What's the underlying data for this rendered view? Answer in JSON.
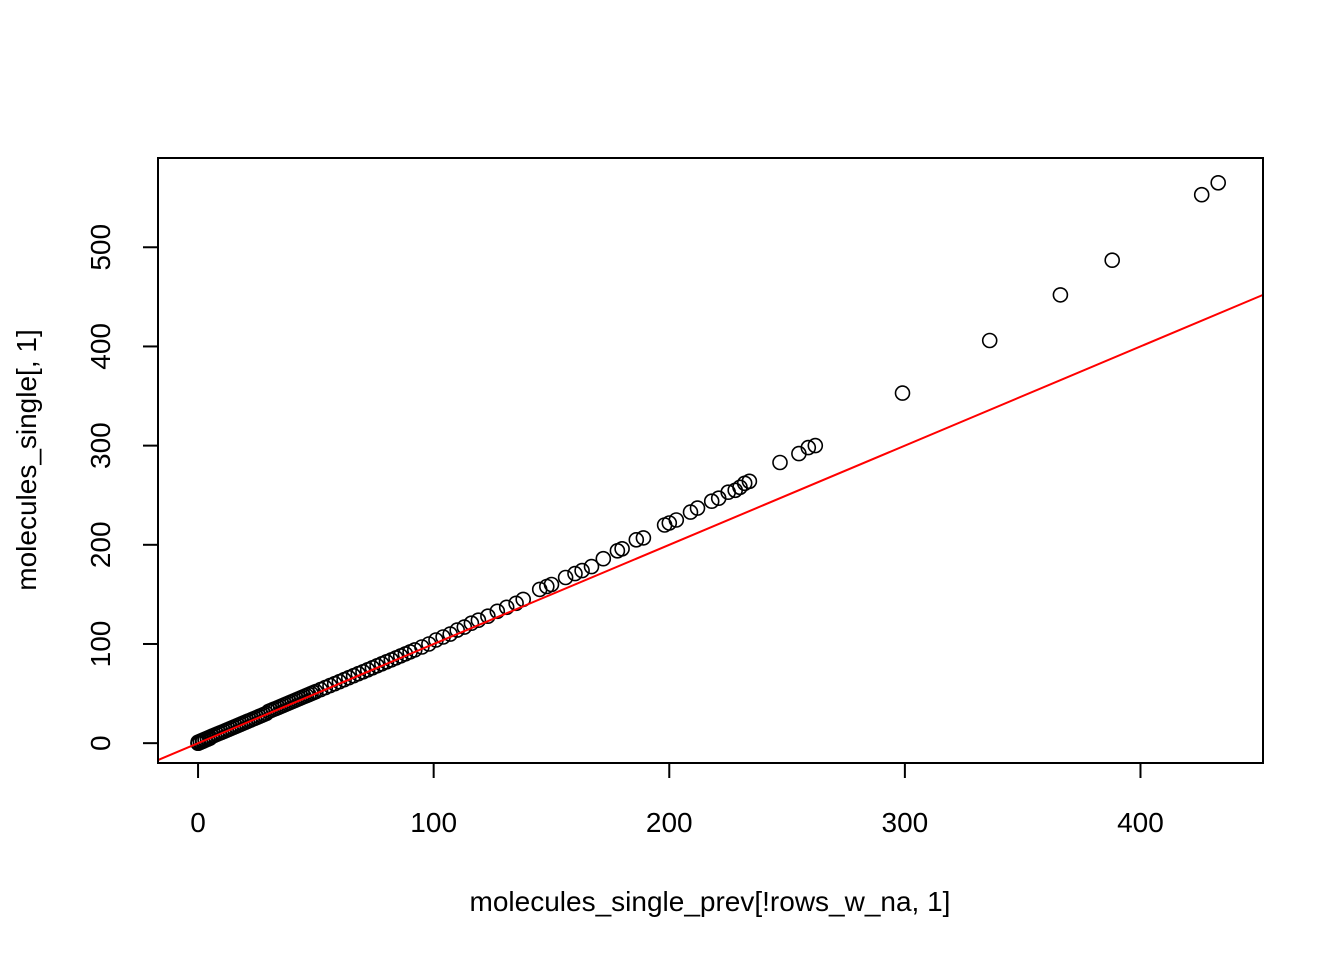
{
  "chart_data": {
    "type": "scatter",
    "title": "",
    "xlabel": "molecules_single_prev[!rows_w_na, 1]",
    "ylabel": "molecules_single[, 1]",
    "xlim": [
      -17,
      452
    ],
    "ylim": [
      -20,
      590
    ],
    "x_ticks": [
      0,
      100,
      200,
      300,
      400
    ],
    "y_ticks": [
      0,
      100,
      200,
      300,
      400,
      500
    ],
    "grid": false,
    "point_color": "#000000",
    "reference_line": {
      "slope": 1,
      "intercept": 0,
      "color": "#ff0000"
    },
    "series": [
      {
        "x": [
          0,
          0,
          0,
          1,
          1,
          1,
          2,
          2,
          2,
          3,
          3,
          4,
          4,
          5,
          5,
          6,
          6,
          7,
          8,
          9,
          10,
          11,
          12,
          13,
          14,
          15,
          16,
          17,
          18,
          19,
          20,
          21,
          22,
          23,
          24,
          25,
          26,
          27,
          28,
          29,
          30,
          31,
          32,
          33,
          34,
          35,
          36,
          37,
          38,
          39,
          40,
          41,
          42,
          43,
          44,
          45,
          46,
          47,
          48,
          49,
          50,
          52,
          54,
          56,
          58,
          60,
          62,
          64,
          66,
          68,
          70,
          72,
          74,
          76,
          78,
          80,
          82,
          84,
          86,
          88,
          90,
          92,
          95,
          98,
          101,
          104,
          107,
          110,
          113,
          116,
          119,
          123,
          127,
          131,
          135,
          138,
          145,
          148,
          150,
          156,
          160,
          163,
          167,
          172,
          178,
          180,
          186,
          189,
          198,
          200,
          203,
          209,
          212,
          218,
          221,
          225,
          228,
          230,
          232,
          234,
          247,
          255,
          259,
          262,
          299,
          336,
          366,
          388,
          426,
          433
        ],
        "y": [
          0,
          0,
          1,
          1,
          2,
          1,
          2,
          3,
          2,
          3,
          4,
          4,
          5,
          5,
          6,
          7,
          7,
          8,
          9,
          10,
          11,
          12,
          13,
          14,
          15,
          16,
          17,
          18,
          19,
          20,
          21,
          22,
          23,
          24,
          25,
          26,
          27,
          28,
          29,
          30,
          32,
          33,
          34,
          35,
          36,
          37,
          38,
          39,
          40,
          41,
          42,
          43,
          44,
          45,
          46,
          47,
          48,
          49,
          50,
          51,
          52,
          54,
          56,
          58,
          60,
          62,
          64,
          66,
          68,
          70,
          72,
          74,
          76,
          78,
          80,
          82,
          84,
          86,
          88,
          90,
          92,
          94,
          97,
          100,
          104,
          107,
          110,
          114,
          117,
          121,
          124,
          128,
          133,
          137,
          141,
          145,
          155,
          158,
          160,
          167,
          171,
          174,
          178,
          186,
          194,
          196,
          205,
          207,
          220,
          222,
          225,
          233,
          237,
          244,
          247,
          253,
          255,
          258,
          262,
          264,
          283,
          292,
          298,
          300,
          353,
          406,
          452,
          487,
          553,
          565
        ]
      }
    ]
  }
}
